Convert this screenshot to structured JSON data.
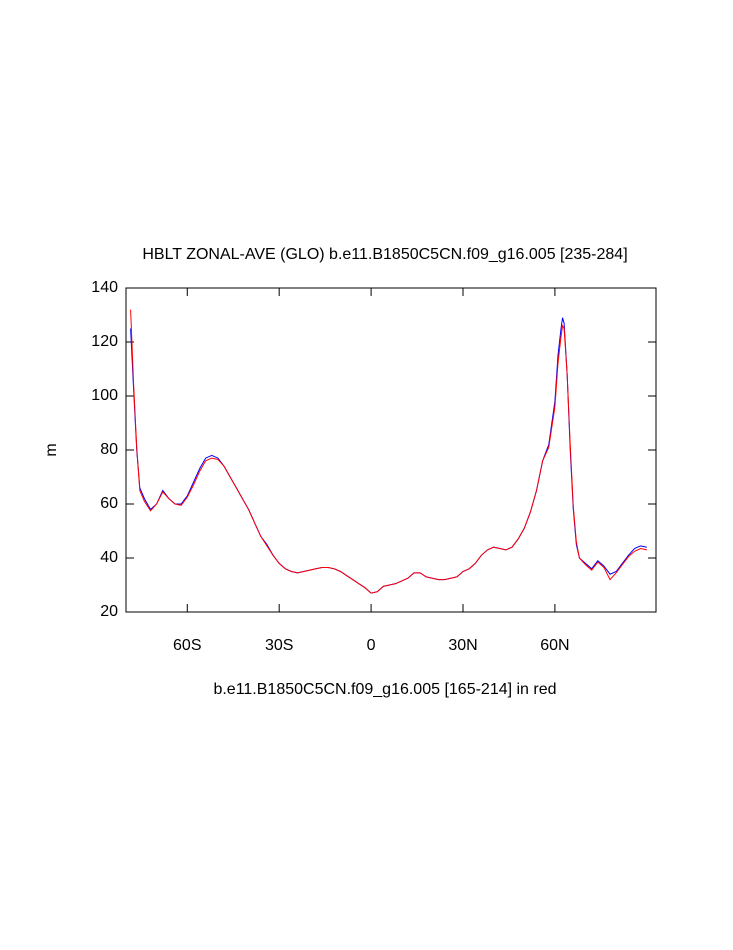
{
  "chart_data": {
    "type": "line",
    "title": "HBLT ZONAL-AVE (GLO) b.e11.B1850C5CN.f09_g16.005 [235-284]",
    "x_label": "b.e11.B1850C5CN.f09_g16.005 [165-214] in red",
    "y_label": "m",
    "x": [
      -78.5,
      -77.5,
      -76.5,
      -75.5,
      -74,
      -72,
      -70,
      -68,
      -66,
      -64,
      -62,
      -60,
      -58,
      -56,
      -54,
      -52,
      -50,
      -48,
      -46,
      -44,
      -42,
      -40,
      -38,
      -36,
      -34,
      -32,
      -30,
      -28,
      -26,
      -24,
      -22,
      -20,
      -18,
      -16,
      -14,
      -12,
      -10,
      -8,
      -6,
      -4,
      -2,
      0,
      2,
      4,
      6,
      8,
      10,
      12,
      14,
      16,
      18,
      20,
      22,
      24,
      26,
      28,
      30,
      32,
      34,
      36,
      38,
      40,
      42,
      44,
      46,
      48,
      50,
      52,
      54,
      56,
      58,
      60,
      61,
      62,
      62.5,
      63,
      64,
      65,
      66,
      67,
      68,
      70,
      72,
      74,
      76,
      78,
      80,
      82,
      84,
      86,
      88,
      90
    ],
    "series": [
      {
        "name": "blue",
        "color": "#0000ff",
        "values": [
          125,
          102,
          80,
          66,
          62,
          58,
          60,
          65,
          62,
          60,
          60,
          63,
          68,
          73,
          77,
          78,
          77,
          74,
          70,
          66,
          62,
          58,
          53,
          48,
          45,
          41,
          38,
          36,
          35,
          34.5,
          35,
          35.5,
          36,
          36.5,
          36.5,
          36,
          35,
          33.5,
          32,
          30.5,
          29,
          27,
          27.5,
          29.5,
          30,
          30.5,
          31.5,
          32.5,
          34.5,
          34.5,
          33,
          32.5,
          32,
          32,
          32.5,
          33,
          35,
          36,
          38,
          41,
          43,
          44,
          43.5,
          43,
          44,
          47,
          51,
          57,
          65,
          76,
          82,
          98,
          115,
          125,
          129,
          127,
          108,
          80,
          58,
          45,
          40,
          38,
          36,
          39,
          37,
          34,
          35,
          38,
          41,
          43.5,
          44.5,
          44
        ]
      },
      {
        "name": "red",
        "color": "#ff0000",
        "values": [
          132,
          104,
          81,
          65,
          61,
          57.5,
          60,
          64.5,
          62,
          60,
          59.5,
          62.5,
          67,
          72,
          76,
          77,
          76.5,
          74,
          70,
          66,
          62,
          58,
          53,
          48,
          44.5,
          41,
          38,
          36,
          35,
          34.5,
          35,
          35.5,
          36,
          36.5,
          36.5,
          36,
          35,
          33.5,
          32,
          30.5,
          29,
          27,
          27.5,
          29.5,
          30,
          30.5,
          31.5,
          32.5,
          34.5,
          34.5,
          33,
          32.5,
          32,
          32,
          32.5,
          33,
          35,
          36,
          38,
          41,
          43,
          44,
          43.5,
          43,
          44,
          47,
          51,
          57,
          65,
          76,
          81,
          96,
          112,
          122,
          126,
          125,
          108,
          82,
          59,
          46,
          40,
          37.5,
          35.5,
          38.5,
          36.5,
          32,
          34.5,
          37.5,
          40.5,
          42.5,
          43.5,
          43
        ]
      }
    ],
    "xlim": [
      -80,
      93
    ],
    "ylim": [
      20,
      140
    ],
    "xticks": [
      {
        "value": -60,
        "label": "60S"
      },
      {
        "value": -30,
        "label": "30S"
      },
      0,
      {
        "value": 30,
        "label": "30N"
      },
      {
        "value": 60,
        "label": "60N"
      }
    ],
    "yticks": [
      20,
      40,
      60,
      80,
      100,
      120,
      140
    ]
  }
}
